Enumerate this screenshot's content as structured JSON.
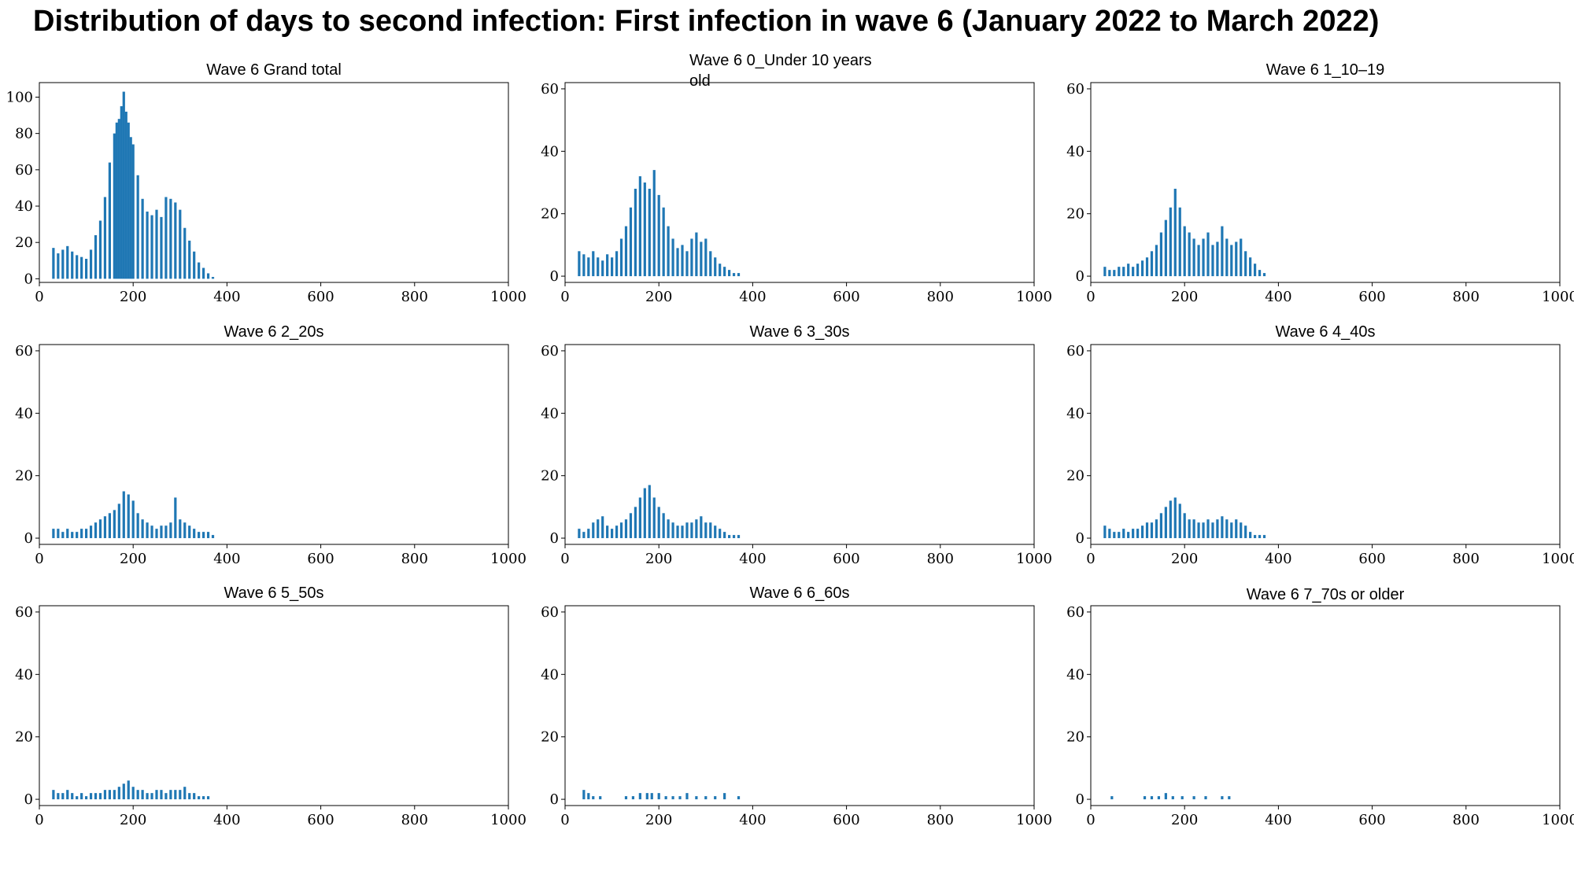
{
  "title": "Distribution of days to second infection: First infection in wave 6 (January 2022 to March 2022)",
  "bar_color": "#1f77b4",
  "chart_data": [
    {
      "type": "bar",
      "title": "Wave 6  Grand total",
      "xlim": [
        0,
        1000
      ],
      "ylim": [
        -2,
        108
      ],
      "xticks": [
        0,
        200,
        400,
        600,
        800,
        1000
      ],
      "yticks": [
        0,
        20,
        40,
        60,
        80,
        100
      ],
      "grid": false,
      "x": [
        30,
        40,
        50,
        60,
        70,
        80,
        90,
        100,
        110,
        120,
        130,
        140,
        150,
        160,
        165,
        170,
        175,
        180,
        185,
        190,
        195,
        200,
        210,
        220,
        230,
        240,
        250,
        260,
        270,
        280,
        290,
        300,
        310,
        320,
        330,
        340,
        350,
        360,
        370
      ],
      "values": [
        17,
        14,
        16,
        18,
        15,
        13,
        12,
        11,
        16,
        24,
        32,
        45,
        64,
        80,
        86,
        88,
        95,
        103,
        92,
        86,
        78,
        74,
        57,
        44,
        37,
        35,
        38,
        34,
        45,
        44,
        42,
        38,
        28,
        21,
        15,
        9,
        6,
        3,
        1
      ]
    },
    {
      "type": "bar",
      "title": "Wave 6  0_Under 10 years old",
      "xlim": [
        0,
        1000
      ],
      "ylim": [
        -2,
        62
      ],
      "xticks": [
        0,
        200,
        400,
        600,
        800,
        1000
      ],
      "yticks": [
        0,
        20,
        40,
        60
      ],
      "grid": false,
      "x": [
        30,
        40,
        50,
        60,
        70,
        80,
        90,
        100,
        110,
        120,
        130,
        140,
        150,
        160,
        170,
        180,
        190,
        200,
        210,
        220,
        230,
        240,
        250,
        260,
        270,
        280,
        290,
        300,
        310,
        320,
        330,
        340,
        350,
        360,
        370
      ],
      "values": [
        8,
        7,
        6,
        8,
        6,
        5,
        7,
        6,
        8,
        12,
        16,
        22,
        28,
        32,
        30,
        28,
        34,
        26,
        22,
        16,
        12,
        9,
        10,
        8,
        12,
        14,
        11,
        12,
        8,
        6,
        4,
        3,
        2,
        1,
        1
      ]
    },
    {
      "type": "bar",
      "title": "Wave 6  1_10–19",
      "xlim": [
        0,
        1000
      ],
      "ylim": [
        -2,
        62
      ],
      "xticks": [
        0,
        200,
        400,
        600,
        800,
        1000
      ],
      "yticks": [
        0,
        20,
        40,
        60
      ],
      "grid": false,
      "x": [
        30,
        40,
        50,
        60,
        70,
        80,
        90,
        100,
        110,
        120,
        130,
        140,
        150,
        160,
        170,
        180,
        190,
        200,
        210,
        220,
        230,
        240,
        250,
        260,
        270,
        280,
        290,
        300,
        310,
        320,
        330,
        340,
        350,
        360,
        370
      ],
      "values": [
        3,
        2,
        2,
        3,
        3,
        4,
        3,
        4,
        5,
        6,
        8,
        10,
        14,
        18,
        22,
        28,
        22,
        16,
        14,
        12,
        10,
        12,
        14,
        10,
        11,
        16,
        12,
        10,
        11,
        12,
        8,
        6,
        4,
        2,
        1
      ]
    },
    {
      "type": "bar",
      "title": "Wave 6  2_20s",
      "xlim": [
        0,
        1000
      ],
      "ylim": [
        -2,
        62
      ],
      "xticks": [
        0,
        200,
        400,
        600,
        800,
        1000
      ],
      "yticks": [
        0,
        20,
        40,
        60
      ],
      "grid": false,
      "x": [
        30,
        40,
        50,
        60,
        70,
        80,
        90,
        100,
        110,
        120,
        130,
        140,
        150,
        160,
        170,
        180,
        190,
        200,
        210,
        220,
        230,
        240,
        250,
        260,
        270,
        280,
        290,
        300,
        310,
        320,
        330,
        340,
        350,
        360,
        370
      ],
      "values": [
        3,
        3,
        2,
        3,
        2,
        2,
        3,
        3,
        4,
        5,
        6,
        7,
        8,
        9,
        11,
        15,
        14,
        12,
        8,
        6,
        5,
        4,
        3,
        4,
        4,
        5,
        13,
        6,
        5,
        4,
        3,
        2,
        2,
        2,
        1
      ]
    },
    {
      "type": "bar",
      "title": "Wave 6  3_30s",
      "xlim": [
        0,
        1000
      ],
      "ylim": [
        -2,
        62
      ],
      "xticks": [
        0,
        200,
        400,
        600,
        800,
        1000
      ],
      "yticks": [
        0,
        20,
        40,
        60
      ],
      "grid": false,
      "x": [
        30,
        40,
        50,
        60,
        70,
        80,
        90,
        100,
        110,
        120,
        130,
        140,
        150,
        160,
        170,
        180,
        190,
        200,
        210,
        220,
        230,
        240,
        250,
        260,
        270,
        280,
        290,
        300,
        310,
        320,
        330,
        340,
        350,
        360,
        370
      ],
      "values": [
        3,
        2,
        3,
        5,
        6,
        7,
        4,
        3,
        4,
        5,
        6,
        8,
        10,
        13,
        16,
        17,
        13,
        10,
        8,
        6,
        5,
        4,
        4,
        5,
        5,
        6,
        7,
        5,
        5,
        4,
        3,
        2,
        1,
        1,
        1
      ]
    },
    {
      "type": "bar",
      "title": "Wave 6  4_40s",
      "xlim": [
        0,
        1000
      ],
      "ylim": [
        -2,
        62
      ],
      "xticks": [
        0,
        200,
        400,
        600,
        800,
        1000
      ],
      "yticks": [
        0,
        20,
        40,
        60
      ],
      "grid": false,
      "x": [
        30,
        40,
        50,
        60,
        70,
        80,
        90,
        100,
        110,
        120,
        130,
        140,
        150,
        160,
        170,
        180,
        190,
        200,
        210,
        220,
        230,
        240,
        250,
        260,
        270,
        280,
        290,
        300,
        310,
        320,
        330,
        340,
        350,
        360,
        370
      ],
      "values": [
        4,
        3,
        2,
        2,
        3,
        2,
        3,
        3,
        4,
        5,
        5,
        6,
        8,
        10,
        12,
        13,
        11,
        8,
        6,
        6,
        5,
        5,
        6,
        5,
        6,
        7,
        6,
        5,
        6,
        5,
        4,
        2,
        1,
        1,
        1
      ]
    },
    {
      "type": "bar",
      "title": "Wave 6  5_50s",
      "xlim": [
        0,
        1000
      ],
      "ylim": [
        -2,
        62
      ],
      "xticks": [
        0,
        200,
        400,
        600,
        800,
        1000
      ],
      "yticks": [
        0,
        20,
        40,
        60
      ],
      "grid": false,
      "x": [
        30,
        40,
        50,
        60,
        70,
        80,
        90,
        100,
        110,
        120,
        130,
        140,
        150,
        160,
        170,
        180,
        190,
        200,
        210,
        220,
        230,
        240,
        250,
        260,
        270,
        280,
        290,
        300,
        310,
        320,
        330,
        340,
        350,
        360
      ],
      "values": [
        3,
        2,
        2,
        3,
        2,
        1,
        2,
        1,
        2,
        2,
        2,
        3,
        3,
        3,
        4,
        5,
        6,
        4,
        3,
        3,
        2,
        2,
        3,
        3,
        2,
        3,
        3,
        3,
        4,
        2,
        2,
        1,
        1,
        1
      ]
    },
    {
      "type": "bar",
      "title": "Wave 6  6_60s",
      "xlim": [
        0,
        1000
      ],
      "ylim": [
        -2,
        62
      ],
      "xticks": [
        0,
        200,
        400,
        600,
        800,
        1000
      ],
      "yticks": [
        0,
        20,
        40,
        60
      ],
      "grid": false,
      "x": [
        40,
        50,
        60,
        75,
        130,
        145,
        160,
        175,
        185,
        200,
        215,
        230,
        245,
        260,
        280,
        300,
        320,
        340,
        370
      ],
      "values": [
        3,
        2,
        1,
        1,
        1,
        1,
        2,
        2,
        2,
        2,
        1,
        1,
        1,
        2,
        1,
        1,
        1,
        2,
        1
      ]
    },
    {
      "type": "bar",
      "title": "Wave 6  7_70s or older",
      "xlim": [
        0,
        1000
      ],
      "ylim": [
        -2,
        62
      ],
      "xticks": [
        0,
        200,
        400,
        600,
        800,
        1000
      ],
      "yticks": [
        0,
        20,
        40,
        60
      ],
      "grid": false,
      "x": [
        45,
        115,
        130,
        145,
        160,
        175,
        195,
        220,
        245,
        280,
        295
      ],
      "values": [
        1,
        1,
        1,
        1,
        2,
        1,
        1,
        1,
        1,
        1,
        1
      ]
    }
  ]
}
